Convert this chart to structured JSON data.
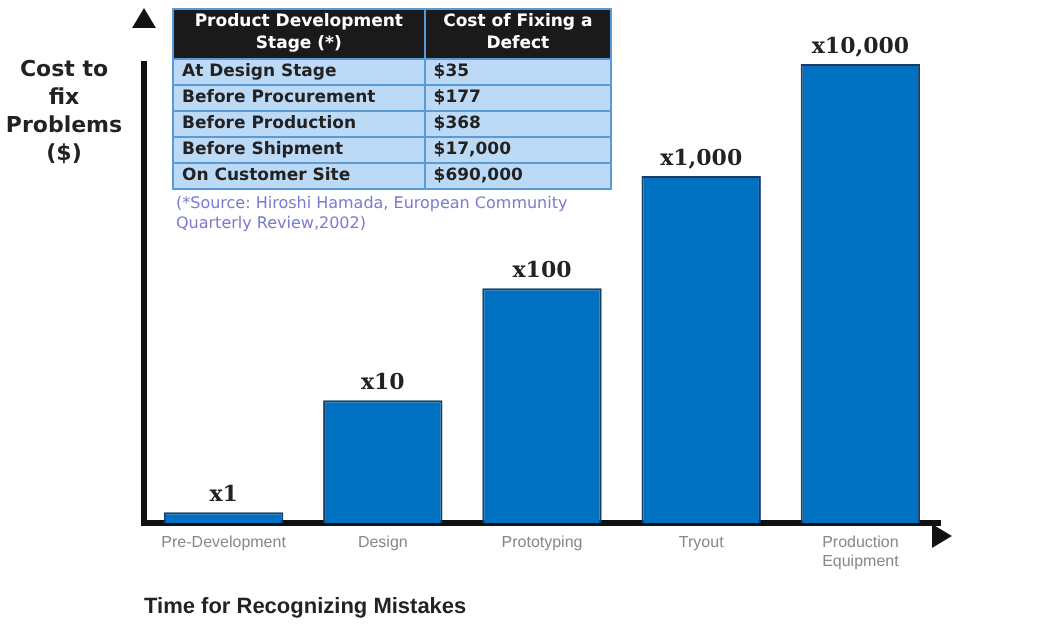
{
  "chart_data": [
    {
      "type": "bar",
      "ylabel": "Cost to fix Problems ($)",
      "xlabel": "Time for Recognizing Mistakes",
      "categories": [
        "Pre-Development",
        "Design",
        "Prototyping",
        "Tryout",
        "Production Equipment"
      ],
      "values": [
        1,
        10,
        100,
        1000,
        10000
      ],
      "color": "#0070c0",
      "log": "y",
      "ylim": [
        0.8,
        10000
      ],
      "tick_labels": "x",
      "value_labels": [
        "x1",
        "x10",
        "x100",
        "x1,000",
        "x10,000"
      ],
      "annotations": [
        "(*Source: Hiroshi Hamada, European Community Quarterly Review,2002)"
      ]
    },
    {
      "type": "other",
      "annotations": [
        "Product Development Stage (*)",
        "Cost of Fixing a Defect",
        "At Design Stage",
        "$35",
        "Before Procurement",
        "$177",
        "Before Production",
        "$368",
        "Before Shipment",
        "$17,000",
        "On Customer Site",
        "$690,000"
      ]
    }
  ]
}
